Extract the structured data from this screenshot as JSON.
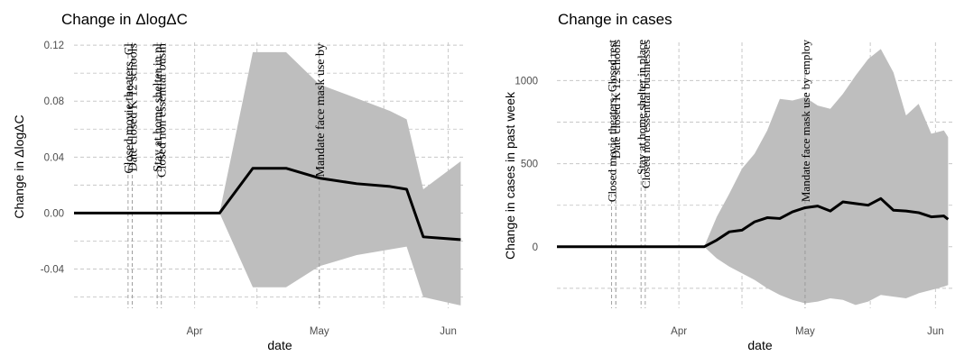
{
  "chart_data": [
    {
      "type": "line",
      "title": "Change in ΔlogΔC",
      "xlabel": "date",
      "ylabel": "Change in ΔlogΔC",
      "x_tick_labels": [
        "Apr",
        "May",
        "Jun"
      ],
      "x_ticks": [
        "2020-04-01",
        "2020-05-01",
        "2020-06-01"
      ],
      "y_ticks": [
        -0.04,
        0.0,
        0.04,
        0.08,
        0.12
      ],
      "y_tick_labels": [
        "-0.04",
        "0.00",
        "0.04",
        "0.08",
        "0.12"
      ],
      "xlim": [
        "2020-03-03",
        "2020-06-05"
      ],
      "ylim": [
        -0.068,
        0.122
      ],
      "grid": true,
      "series": [
        {
          "x": [
            "2020-03-03",
            "2020-04-07",
            "2020-04-15",
            "2020-04-23",
            "2020-05-01",
            "2020-05-10",
            "2020-05-18",
            "2020-05-22",
            "2020-05-26",
            "2020-06-04"
          ],
          "values": [
            0.0,
            0.0,
            0.032,
            0.032,
            0.025,
            0.021,
            0.019,
            0.017,
            -0.017,
            -0.019
          ],
          "lower": [
            0.0,
            0.0,
            -0.053,
            -0.053,
            -0.038,
            -0.03,
            -0.026,
            -0.024,
            -0.06,
            -0.066
          ],
          "upper": [
            0.0,
            0.0,
            0.115,
            0.115,
            0.092,
            0.082,
            0.073,
            0.067,
            0.017,
            0.037
          ]
        }
      ],
      "annotations": [
        {
          "date": "2020-03-16",
          "text": "Closed movie theaters, Cl"
        },
        {
          "date": "2020-03-17",
          "text": "Date closed K 12 schools"
        },
        {
          "date": "2020-03-23",
          "text": "Stay at home  shelter in pl"
        },
        {
          "date": "2020-03-24",
          "text": "Closed non essential busin"
        },
        {
          "date": "2020-05-01",
          "text": "Mandate face mask use by"
        }
      ]
    },
    {
      "type": "line",
      "title": "Change in cases",
      "xlabel": "date",
      "ylabel": "Change in cases in past week",
      "x_tick_labels": [
        "Apr",
        "May",
        "Jun"
      ],
      "x_ticks": [
        "2020-04-01",
        "2020-05-01",
        "2020-06-01"
      ],
      "y_ticks": [
        0,
        500,
        1000
      ],
      "y_tick_labels": [
        "0",
        "500",
        "1000"
      ],
      "xlim": [
        "2020-03-03",
        "2020-06-05"
      ],
      "ylim": [
        -370,
        1230
      ],
      "grid": true,
      "series": [
        {
          "x": [
            "2020-03-03",
            "2020-04-07",
            "2020-04-10",
            "2020-04-13",
            "2020-04-16",
            "2020-04-19",
            "2020-04-22",
            "2020-04-25",
            "2020-04-28",
            "2020-05-01",
            "2020-05-04",
            "2020-05-07",
            "2020-05-10",
            "2020-05-13",
            "2020-05-16",
            "2020-05-19",
            "2020-05-22",
            "2020-05-25",
            "2020-05-28",
            "2020-05-31",
            "2020-06-03",
            "2020-06-04"
          ],
          "values": [
            0,
            0,
            40,
            90,
            100,
            150,
            175,
            170,
            210,
            235,
            245,
            215,
            270,
            260,
            250,
            290,
            220,
            215,
            205,
            180,
            185,
            165
          ],
          "lower": [
            0,
            0,
            -70,
            -120,
            -160,
            -200,
            -250,
            -290,
            -320,
            -340,
            -330,
            -310,
            -320,
            -350,
            -330,
            -290,
            -300,
            -310,
            -280,
            -260,
            -240,
            -230
          ],
          "upper": [
            0,
            0,
            180,
            320,
            470,
            560,
            700,
            890,
            880,
            900,
            850,
            830,
            920,
            1030,
            1130,
            1190,
            1050,
            790,
            860,
            680,
            700,
            660
          ]
        }
      ],
      "annotations": [
        {
          "date": "2020-03-16",
          "text": "Closed movie theaters, Closed rest"
        },
        {
          "date": "2020-03-17",
          "text": "Date closed K 12 schools"
        },
        {
          "date": "2020-03-23",
          "text": "Stay at home  shelter in place"
        },
        {
          "date": "2020-03-24",
          "text": "Closed non essential businesses"
        },
        {
          "date": "2020-05-01",
          "text": "Mandate face mask use by employ"
        }
      ]
    }
  ],
  "colors": {
    "ribbon": "#bebebe",
    "line": "#000000",
    "grid": "#c8c8c8",
    "text": "#000000",
    "tick_text": "#4d4d4d"
  }
}
